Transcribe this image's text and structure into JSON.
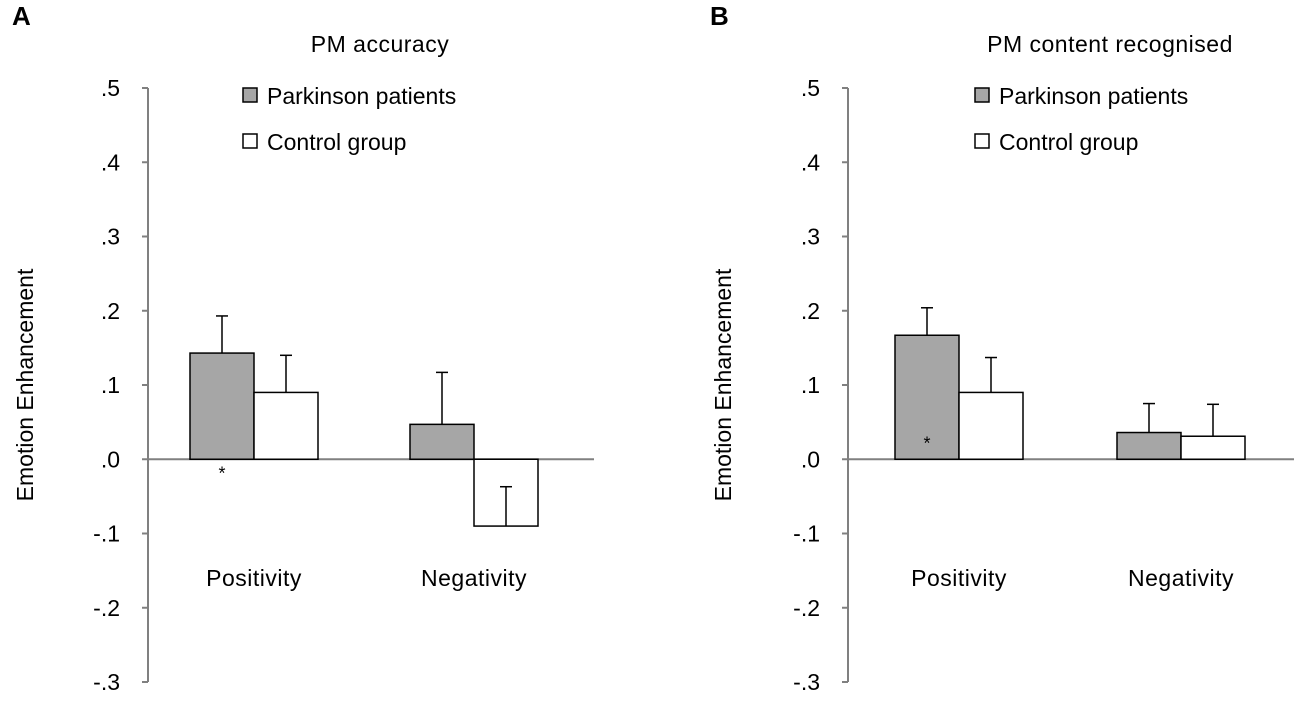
{
  "colors": {
    "patients": "#a6a6a6",
    "control": "#ffffff",
    "stroke": "#000000",
    "axis": "#808080"
  },
  "chart_data": [
    {
      "panel": "A",
      "type": "bar",
      "title": "PM accuracy",
      "ylabel": "Emotion Enhancement",
      "xlabel": "",
      "ylim": [
        -0.3,
        0.5
      ],
      "yticks": [
        0.5,
        0.4,
        0.3,
        0.2,
        0.1,
        0.0,
        -0.1,
        -0.2,
        -0.3
      ],
      "ytick_labels": [
        ".5",
        ".4",
        ".3",
        ".2",
        ".1",
        ".0",
        "-.1",
        "-.2",
        "-.3"
      ],
      "categories": [
        "Positivity",
        "Negativity"
      ],
      "series": [
        {
          "name": "Parkinson patients",
          "values": [
            0.143,
            0.047
          ],
          "error_top": [
            0.193,
            0.117
          ]
        },
        {
          "name": "Control group",
          "values": [
            0.09,
            -0.09
          ],
          "error_top": [
            0.14,
            -0.037
          ]
        }
      ],
      "annotations": [
        {
          "category": "Positivity",
          "series": "Parkinson patients",
          "text": "*",
          "placement": "below-axis"
        }
      ],
      "legend": "top-right"
    },
    {
      "panel": "B",
      "type": "bar",
      "title": "PM content recognised",
      "ylabel": "Emotion Enhancement",
      "xlabel": "",
      "ylim": [
        -0.3,
        0.5
      ],
      "yticks": [
        0.5,
        0.4,
        0.3,
        0.2,
        0.1,
        0.0,
        -0.1,
        -0.2,
        -0.3
      ],
      "ytick_labels": [
        ".5",
        ".4",
        ".3",
        ".2",
        ".1",
        ".0",
        "-.1",
        "-.2",
        "-.3"
      ],
      "categories": [
        "Positivity",
        "Negativity"
      ],
      "series": [
        {
          "name": "Parkinson patients",
          "values": [
            0.167,
            0.036
          ],
          "error_top": [
            0.204,
            0.075
          ]
        },
        {
          "name": "Control group",
          "values": [
            0.09,
            0.031
          ],
          "error_top": [
            0.137,
            0.074
          ]
        }
      ],
      "annotations": [
        {
          "category": "Positivity",
          "series": "Parkinson patients",
          "text": "*",
          "placement": "inside-bar-bottom"
        }
      ],
      "legend": "top-right"
    }
  ]
}
